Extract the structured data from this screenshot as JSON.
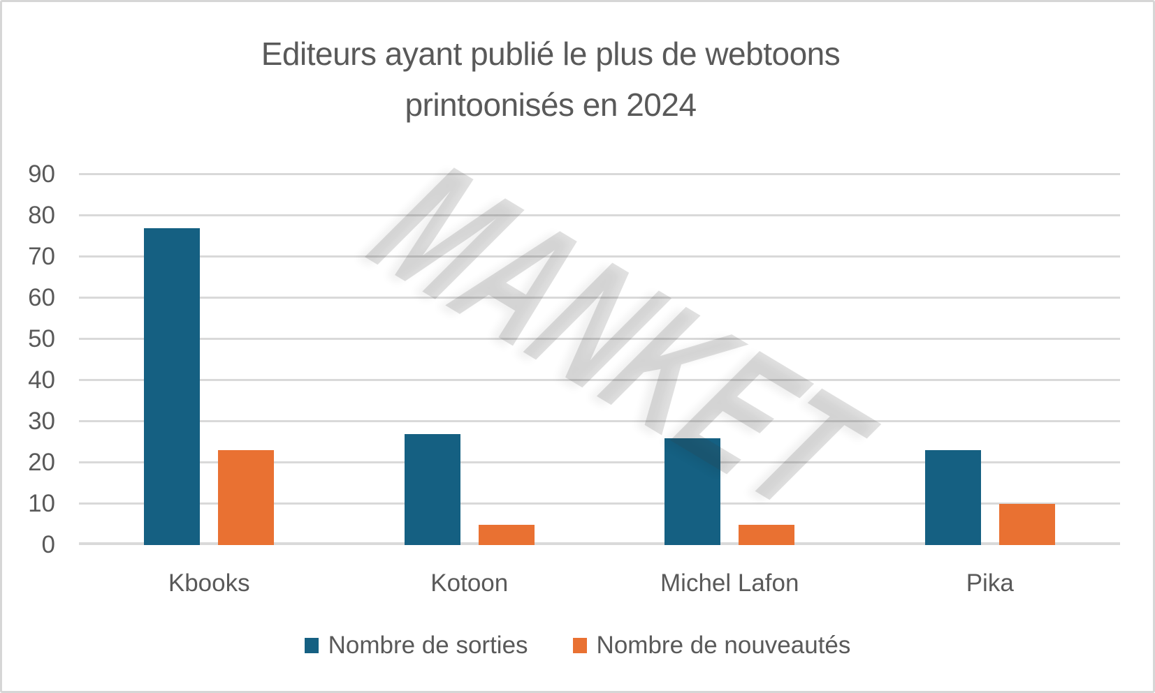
{
  "page": {
    "title_line1": "Editeurs ayant publié le plus de webtoons",
    "title_line2": "printoonisés en 2024",
    "watermark": "MANKET",
    "background": "#FFFFFF",
    "border_color": "#D6D6D6",
    "text_color": "#595959"
  },
  "chart_data": {
    "type": "bar",
    "title": "Editeurs ayant publié le plus de webtoons printoonisés en 2024",
    "categories": [
      "Kbooks",
      "Kotoon",
      "Michel Lafon",
      "Pika"
    ],
    "series": [
      {
        "name": "Nombre de sorties",
        "color": "#156082",
        "values": [
          77,
          27,
          26,
          23
        ]
      },
      {
        "name": "Nombre de nouveautés",
        "color": "#E97132",
        "values": [
          23,
          5,
          5,
          10
        ]
      }
    ],
    "xlabel": "",
    "ylabel": "",
    "ylim": [
      0,
      90
    ],
    "yticks": [
      0,
      10,
      20,
      30,
      40,
      50,
      60,
      70,
      80,
      90
    ],
    "grid": true,
    "gridline_color": "#D9D9D9",
    "legend_position": "bottom",
    "watermark": "MANKET"
  }
}
